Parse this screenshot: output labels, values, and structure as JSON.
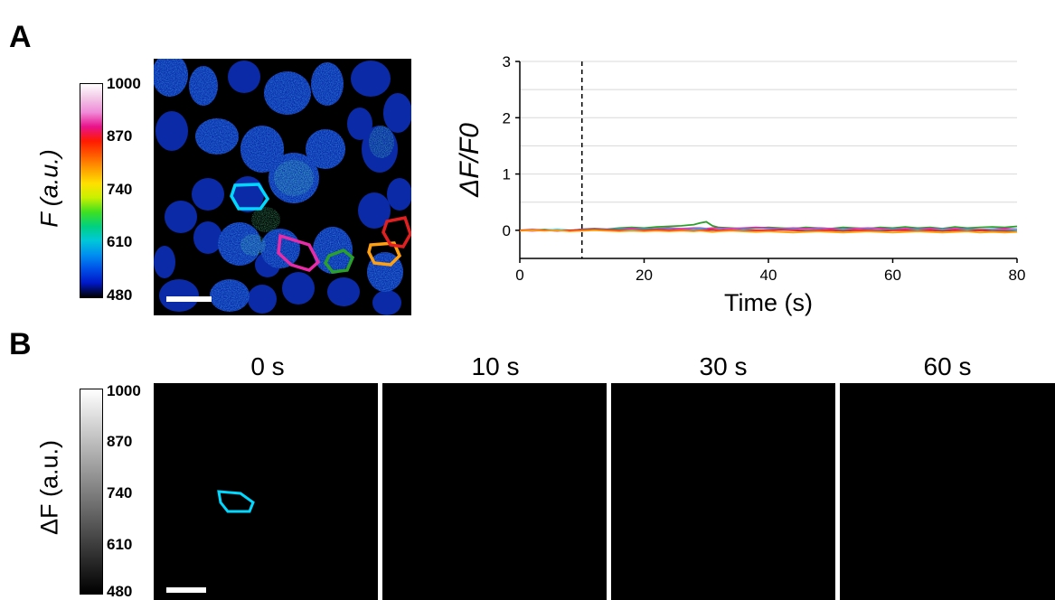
{
  "panels": {
    "a_label": "A",
    "b_label": "B"
  },
  "colorbar_a": {
    "label": "F (a.u.)",
    "ticks": [
      "1000",
      "870",
      "740",
      "610",
      "480"
    ],
    "colors": [
      "#ffffff",
      "#f2c6e6",
      "#f08ad8",
      "#e8128c",
      "#ff1a00",
      "#ff5a00",
      "#ffa000",
      "#ffe000",
      "#c8f000",
      "#40e020",
      "#00d080",
      "#00c8d8",
      "#0090f0",
      "#0050e8",
      "#0018c8",
      "#000000"
    ]
  },
  "colorbar_b": {
    "label": "ΔF (a.u.)",
    "ticks": [
      "1000",
      "870",
      "740",
      "610",
      "480"
    ]
  },
  "roi_colors": [
    "#00d8ff",
    "#e82ca8",
    "#2aa02a",
    "#ffa010",
    "#e02020"
  ],
  "chart_data": {
    "type": "line",
    "xlabel": "Time (s)",
    "ylabel": "ΔF/F0",
    "xlim": [
      0,
      80
    ],
    "ylim": [
      -0.5,
      3
    ],
    "xticks": [
      0,
      20,
      40,
      60,
      80
    ],
    "yticks": [
      0,
      1,
      2,
      3
    ],
    "grid": "horizontal",
    "stimulus_marker_x": 10,
    "x": [
      0,
      2,
      4,
      6,
      8,
      10,
      12,
      14,
      16,
      18,
      20,
      22,
      24,
      26,
      28,
      29,
      30,
      31,
      32,
      34,
      36,
      38,
      40,
      42,
      44,
      46,
      48,
      50,
      52,
      54,
      56,
      58,
      60,
      62,
      64,
      66,
      68,
      70,
      72,
      74,
      76,
      78,
      80
    ],
    "series": [
      {
        "color": "#2aa02a",
        "values": [
          0.0,
          0.0,
          0.01,
          0.0,
          -0.01,
          0.02,
          0.03,
          0.02,
          0.04,
          0.05,
          0.04,
          0.06,
          0.07,
          0.08,
          0.1,
          0.13,
          0.15,
          0.08,
          0.05,
          0.04,
          0.03,
          0.04,
          0.05,
          0.04,
          0.03,
          0.05,
          0.04,
          0.03,
          0.05,
          0.04,
          0.03,
          0.05,
          0.04,
          0.06,
          0.04,
          0.05,
          0.03,
          0.06,
          0.04,
          0.05,
          0.06,
          0.05,
          0.07
        ]
      },
      {
        "color": "#e82ca8",
        "values": [
          0.0,
          -0.01,
          0.0,
          0.01,
          0.0,
          0.01,
          0.02,
          0.01,
          0.02,
          0.03,
          0.02,
          0.03,
          0.04,
          0.03,
          0.04,
          0.04,
          0.03,
          0.04,
          0.04,
          0.03,
          0.04,
          0.05,
          0.04,
          0.03,
          0.04,
          0.03,
          0.04,
          0.03,
          0.02,
          0.03,
          0.04,
          0.03,
          0.02,
          0.03,
          0.02,
          0.03,
          0.02,
          0.03,
          0.02,
          0.01,
          0.02,
          0.03,
          0.02
        ]
      },
      {
        "color": "#00d8ff",
        "values": [
          0.0,
          0.0,
          0.0,
          0.01,
          0.0,
          0.0,
          0.01,
          0.0,
          0.01,
          0.0,
          0.01,
          0.02,
          0.01,
          0.0,
          0.01,
          0.02,
          0.01,
          0.0,
          0.01,
          0.0,
          0.01,
          0.0,
          0.01,
          0.02,
          0.01,
          0.0,
          0.01,
          0.0,
          0.01,
          0.0,
          0.01,
          0.0,
          0.01,
          0.0,
          0.01,
          0.0,
          0.01,
          0.0,
          0.01,
          0.0,
          0.01,
          0.0,
          0.01
        ]
      },
      {
        "color": "#e02020",
        "values": [
          0.0,
          0.01,
          0.0,
          -0.01,
          0.0,
          0.0,
          0.01,
          0.0,
          0.0,
          -0.01,
          0.0,
          0.01,
          0.0,
          0.0,
          -0.01,
          0.0,
          0.0,
          0.01,
          0.0,
          0.0,
          -0.01,
          0.0,
          0.0,
          0.01,
          0.0,
          -0.01,
          0.0,
          0.0,
          -0.01,
          0.0,
          0.0,
          -0.01,
          0.0,
          0.0,
          -0.01,
          0.0,
          -0.01,
          0.0,
          -0.01,
          0.0,
          -0.01,
          -0.01,
          -0.02
        ]
      },
      {
        "color": "#ffa010",
        "values": [
          -0.01,
          0.0,
          -0.01,
          0.0,
          -0.02,
          -0.01,
          0.0,
          -0.01,
          -0.02,
          -0.01,
          -0.02,
          -0.01,
          -0.02,
          -0.01,
          -0.02,
          -0.01,
          -0.02,
          -0.03,
          -0.02,
          -0.01,
          -0.02,
          -0.03,
          -0.02,
          -0.03,
          -0.04,
          -0.03,
          -0.02,
          -0.03,
          -0.04,
          -0.03,
          -0.02,
          -0.03,
          -0.04,
          -0.03,
          -0.02,
          -0.03,
          -0.04,
          -0.03,
          -0.02,
          -0.04,
          -0.03,
          -0.04,
          -0.03
        ]
      }
    ]
  },
  "frames": [
    {
      "title": "0 s"
    },
    {
      "title": "10 s"
    },
    {
      "title": "30 s"
    },
    {
      "title": "60 s"
    }
  ]
}
